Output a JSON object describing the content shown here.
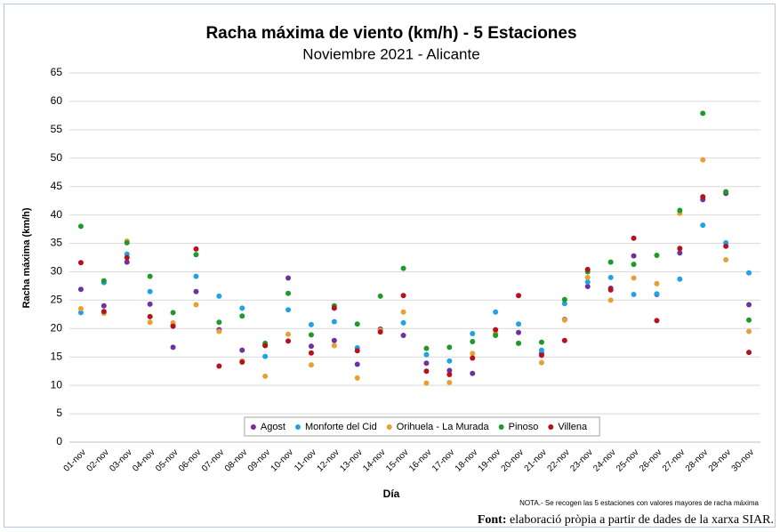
{
  "chart_data": {
    "type": "scatter",
    "title": "Racha máxima de viento (km/h) - 5 Estaciones",
    "subtitle": "Noviembre 2021 - Alicante",
    "y_label": "Racha máxima (km/h)",
    "x_label": "Día",
    "note": "NOTA.- Se recogen las 5 estaciones con valores mayores de racha máxima",
    "source_label": "Font:",
    "source_text": "elaboració pròpia a partir de dades de la xarxa SIAR.",
    "categories": [
      "01-nov",
      "02-nov",
      "03-nov",
      "04-nov",
      "05-nov",
      "06-nov",
      "07-nov",
      "08-nov",
      "09-nov",
      "10-nov",
      "11-nov",
      "12-nov",
      "13-nov",
      "14-nov",
      "15-nov",
      "16-nov",
      "17-nov",
      "18-nov",
      "19-nov",
      "20-nov",
      "21-nov",
      "22-nov",
      "23-nov",
      "24-nov",
      "25-nov",
      "26-nov",
      "27-nov",
      "28-nov",
      "29-nov",
      "30-nov"
    ],
    "ylim": [
      0,
      65
    ],
    "yticks": [
      0,
      5,
      10,
      15,
      20,
      25,
      30,
      35,
      40,
      45,
      50,
      55,
      60,
      65
    ],
    "grid": true,
    "legend": "bottom",
    "series": [
      {
        "name": "Agost",
        "color": "#7030a0",
        "values": [
          26.9,
          24,
          31.7,
          24.3,
          16.7,
          26.5,
          19.8,
          16.2,
          17.1,
          28.9,
          16.9,
          17.9,
          13.7,
          19.9,
          18.8,
          13.9,
          12.6,
          12.1,
          19.1,
          19.3,
          15.6,
          21.6,
          27.4,
          27.1,
          32.8,
          26,
          33.3,
          42.7,
          43.8,
          24.2
        ]
      },
      {
        "name": "Monforte del Cid",
        "color": "#1fa2e6",
        "values": [
          22.8,
          28.1,
          33.1,
          26.5,
          20.6,
          29.2,
          25.7,
          23.6,
          15.1,
          23.3,
          20.7,
          21.2,
          16.6,
          19.6,
          21,
          15.4,
          14.3,
          19.1,
          22.9,
          20.8,
          16.2,
          24.4,
          28.2,
          29,
          26,
          26.1,
          28.7,
          38.2,
          35.1,
          29.8
        ]
      },
      {
        "name": "Orihuela - La Murada",
        "color": "#e89f33",
        "values": [
          23.5,
          22.7,
          35.4,
          21.1,
          21,
          24.2,
          19.5,
          14.3,
          11.6,
          19,
          13.6,
          17,
          11.3,
          19.7,
          22.9,
          10.4,
          10.5,
          15.6,
          19.2,
          17.4,
          14,
          21.5,
          29,
          25,
          28.9,
          27.9,
          40.3,
          49.7,
          32.1,
          19.5
        ]
      },
      {
        "name": "Pinoso",
        "color": "#1e9a2a",
        "values": [
          38,
          28.4,
          35.1,
          29.2,
          22.8,
          33,
          21.1,
          22.2,
          17.4,
          26.2,
          18.9,
          24,
          20.8,
          25.7,
          30.6,
          16.5,
          16.7,
          17.7,
          18.8,
          17.4,
          17.6,
          25.1,
          30,
          31.7,
          31.3,
          32.9,
          40.8,
          57.9,
          44.1,
          21.5
        ]
      },
      {
        "name": "Villena",
        "color": "#b5121b",
        "values": [
          31.6,
          23,
          32.5,
          22.1,
          20.4,
          34,
          13.4,
          14.1,
          17,
          17.8,
          15.7,
          23.6,
          16.1,
          19.4,
          25.8,
          12.5,
          11.9,
          14.8,
          19.8,
          25.8,
          15.3,
          17.9,
          30.4,
          26.8,
          35.9,
          21.4,
          34.1,
          43.2,
          34.5,
          15.8
        ]
      }
    ]
  }
}
